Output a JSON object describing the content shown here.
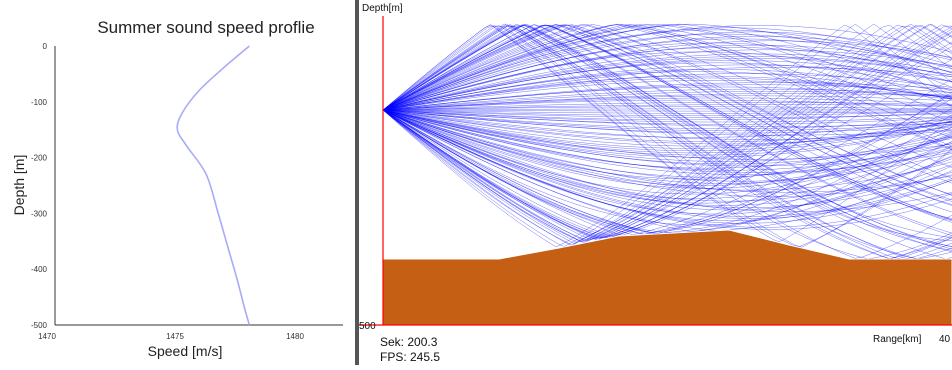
{
  "chart_data": [
    {
      "type": "line",
      "title": "Summer sound speed proflie",
      "xlabel": "Speed [m/s]",
      "ylabel": "Depth [m]",
      "xlim": [
        1470,
        1482
      ],
      "ylim": [
        -500,
        0
      ],
      "xticks": [
        1470,
        1475,
        1480
      ],
      "yticks": [
        0,
        -100,
        -200,
        -300,
        -400,
        -500
      ],
      "grid": false,
      "series": [
        {
          "color": "#a8abf5",
          "x": [
            1478.1,
            1477.0,
            1476.0,
            1475.3,
            1475.1,
            1475.5,
            1476.3,
            1476.8,
            1477.2,
            1477.6,
            1477.9,
            1478.1
          ],
          "y": [
            0,
            -40,
            -80,
            -120,
            -150,
            -180,
            -230,
            -300,
            -360,
            -420,
            -470,
            -500
          ]
        }
      ]
    },
    {
      "type": "other",
      "description_kind": "ray-trace",
      "ylabel": "Depth[m]",
      "xlabel": "Range[km]",
      "range_tick_label": "40",
      "depth_tick_label": "500",
      "ray_color": "#0000ff",
      "seabed_color": "#c55f13",
      "axis_color": "#ff0000"
    }
  ],
  "status": {
    "sek_label": "Sek: 200.3",
    "fps_label": "FPS: 245.5"
  }
}
